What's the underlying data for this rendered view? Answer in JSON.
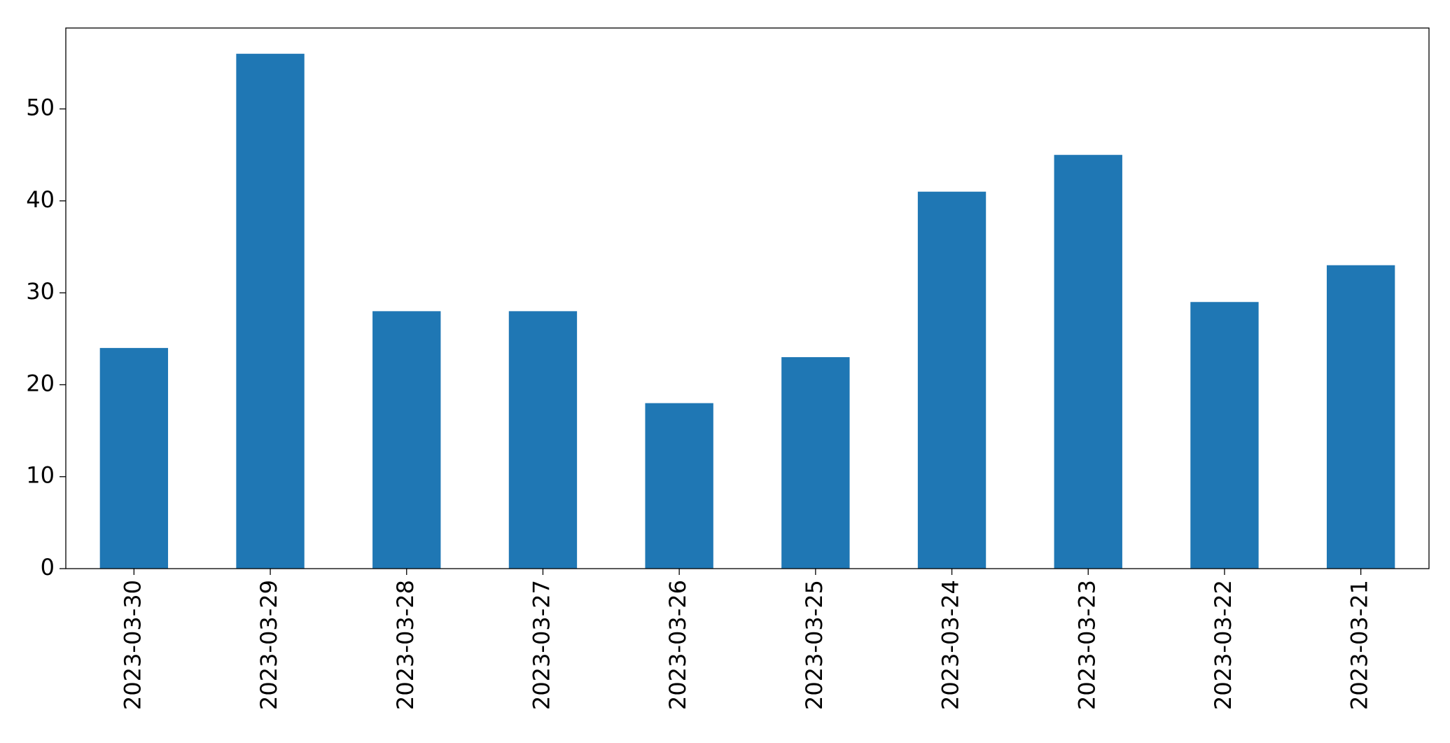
{
  "chart_data": {
    "type": "bar",
    "categories": [
      "2023-03-30",
      "2023-03-29",
      "2023-03-28",
      "2023-03-27",
      "2023-03-26",
      "2023-03-25",
      "2023-03-24",
      "2023-03-23",
      "2023-03-22",
      "2023-03-21"
    ],
    "values": [
      24,
      56,
      28,
      28,
      18,
      23,
      41,
      45,
      29,
      33
    ],
    "color": "#1f77b4",
    "ylim": [
      0,
      58.8
    ],
    "yticks": [
      0,
      10,
      20,
      30,
      40,
      50
    ],
    "grid": false
  }
}
